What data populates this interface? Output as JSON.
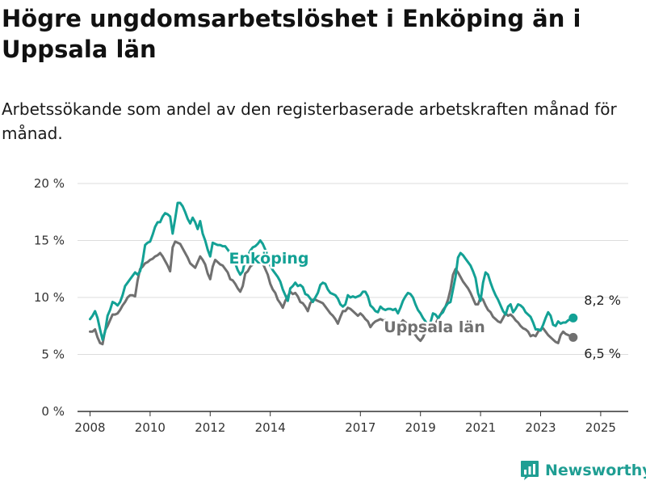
{
  "header": {
    "title": "Högre ungdomsarbetslöshet i Enköping än i Uppsala län",
    "subtitle": "Arbetssökande som andel av den registerbaserade arbetskraften månad för månad."
  },
  "brand": {
    "name": "Newsworthy",
    "icon": "bar-chart-pin-icon"
  },
  "colors": {
    "enkoping": "#13A195",
    "uppsala": "#707070",
    "grid": "#dddddd",
    "axis": "#333333",
    "brand": "#1f9e93"
  },
  "chart_data": {
    "type": "line",
    "title": "Högre ungdomsarbetslöshet i Enköping än i Uppsala län",
    "xlabel": "",
    "ylabel": "",
    "x_start": "2008-01",
    "x_range": [
      "2007-08",
      "2025-12"
    ],
    "ylim": [
      0,
      20
    ],
    "yticks": [
      0,
      5,
      10,
      15,
      20
    ],
    "ytick_labels": [
      "0 %",
      "5 %",
      "10 %",
      "15 %",
      "20 %"
    ],
    "xtick_labels": [
      "2008",
      "2010",
      "2012",
      "2014",
      "2017",
      "2019",
      "2021",
      "2023",
      "2025"
    ],
    "grid": true,
    "series": [
      {
        "name": "Enköping",
        "color": "#13A195",
        "label": "Enköping",
        "end_label": "8,2 %",
        "values": [
          8.1,
          8.4,
          8.8,
          8.2,
          7.2,
          6.3,
          7.0,
          8.4,
          8.9,
          9.6,
          9.5,
          9.3,
          9.6,
          10.2,
          11.0,
          11.3,
          11.6,
          11.9,
          12.2,
          12.0,
          12.3,
          13.2,
          14.6,
          14.8,
          14.9,
          15.5,
          16.2,
          16.6,
          16.6,
          17.1,
          17.4,
          17.3,
          17.1,
          15.6,
          16.9,
          18.3,
          18.3,
          18.0,
          17.5,
          16.9,
          16.5,
          17.0,
          16.6,
          16.0,
          16.7,
          15.6,
          15.0,
          14.2,
          13.6,
          14.8,
          14.7,
          14.6,
          14.6,
          14.5,
          14.5,
          14.2,
          13.9,
          13.6,
          13.0,
          12.4,
          12.0,
          12.3,
          13.3,
          13.6,
          14.1,
          14.4,
          14.5,
          14.7,
          15.0,
          14.7,
          14.2,
          13.6,
          12.8,
          12.4,
          12.1,
          11.8,
          11.4,
          10.7,
          10.2,
          9.7,
          10.8,
          11.0,
          11.3,
          11.0,
          11.1,
          10.9,
          10.3,
          10.2,
          9.9,
          9.6,
          10.0,
          10.4,
          11.1,
          11.3,
          11.2,
          10.7,
          10.4,
          10.3,
          10.2,
          9.9,
          9.4,
          9.2,
          9.4,
          10.2,
          10.0,
          10.1,
          10.0,
          10.1,
          10.2,
          10.5,
          10.5,
          10.1,
          9.3,
          9.1,
          8.8,
          8.7,
          9.2,
          9.0,
          8.9,
          9.0,
          9.0,
          8.9,
          9.0,
          8.6,
          9.1,
          9.7,
          10.1,
          10.4,
          10.3,
          10.0,
          9.4,
          8.9,
          8.6,
          8.2,
          7.9,
          7.5,
          7.8,
          8.6,
          8.5,
          8.2,
          8.5,
          8.7,
          9.2,
          9.5,
          9.6,
          10.7,
          11.8,
          13.5,
          13.9,
          13.7,
          13.4,
          13.1,
          12.8,
          12.3,
          11.7,
          10.4,
          9.7,
          11.3,
          12.2,
          12.0,
          11.3,
          10.7,
          10.2,
          9.8,
          9.3,
          8.8,
          8.5,
          9.2,
          9.4,
          8.7,
          9.0,
          9.4,
          9.3,
          9.1,
          8.7,
          8.5,
          8.3,
          7.8,
          7.2,
          7.2,
          7.1,
          7.6,
          8.2,
          8.7,
          8.4,
          7.6,
          7.5,
          7.9,
          7.7,
          7.8,
          7.8,
          8.0,
          8.1,
          8.2
        ]
      },
      {
        "name": "Uppsala län",
        "color": "#707070",
        "label": "Uppsala län",
        "end_label": "6,5 %",
        "values": [
          7.0,
          7.0,
          7.2,
          6.5,
          6.0,
          5.9,
          7.1,
          7.5,
          8.0,
          8.5,
          8.5,
          8.6,
          8.9,
          9.3,
          9.6,
          10.0,
          10.2,
          10.2,
          10.1,
          11.5,
          12.5,
          12.7,
          13.0,
          13.1,
          13.3,
          13.4,
          13.6,
          13.7,
          13.9,
          13.6,
          13.2,
          12.8,
          12.3,
          14.4,
          14.9,
          14.8,
          14.7,
          14.3,
          13.9,
          13.5,
          13.0,
          12.8,
          12.6,
          13.1,
          13.6,
          13.3,
          12.9,
          12.1,
          11.6,
          12.7,
          13.3,
          13.1,
          12.9,
          12.8,
          12.5,
          12.2,
          11.6,
          11.5,
          11.2,
          10.8,
          10.5,
          11.0,
          12.1,
          12.3,
          12.7,
          12.9,
          13.0,
          13.2,
          13.4,
          13.0,
          12.5,
          12.0,
          11.2,
          10.7,
          10.4,
          9.8,
          9.5,
          9.1,
          9.7,
          10.1,
          10.5,
          10.3,
          10.4,
          10.1,
          9.6,
          9.5,
          9.2,
          8.8,
          9.5,
          9.8,
          9.8,
          9.7,
          9.6,
          9.5,
          9.2,
          8.9,
          8.6,
          8.4,
          8.1,
          7.7,
          8.3,
          8.8,
          8.8,
          9.1,
          9.0,
          8.8,
          8.6,
          8.4,
          8.6,
          8.4,
          8.1,
          7.9,
          7.4,
          7.7,
          7.9,
          8.0,
          8.1,
          8.0,
          8.0,
          7.9,
          7.6,
          7.8,
          7.8,
          7.2,
          7.7,
          8.0,
          7.8,
          7.7,
          7.4,
          7.0,
          6.7,
          6.4,
          6.2,
          6.5,
          7.0,
          7.2,
          7.4,
          7.6,
          7.7,
          8.1,
          8.5,
          8.9,
          9.2,
          9.8,
          10.7,
          12.0,
          12.5,
          12.2,
          11.8,
          11.4,
          11.1,
          10.8,
          10.4,
          9.9,
          9.4,
          9.4,
          10.0,
          9.8,
          9.3,
          8.9,
          8.7,
          8.3,
          8.1,
          7.9,
          7.8,
          8.2,
          8.6,
          8.4,
          8.5,
          8.3,
          8.0,
          7.8,
          7.5,
          7.3,
          7.2,
          7.0,
          6.6,
          6.7,
          6.6,
          7.0,
          7.2,
          7.3,
          7.0,
          6.7,
          6.5,
          6.3,
          6.1,
          6.0,
          6.7,
          7.0,
          6.8,
          6.7,
          6.6,
          6.5
        ]
      }
    ]
  }
}
